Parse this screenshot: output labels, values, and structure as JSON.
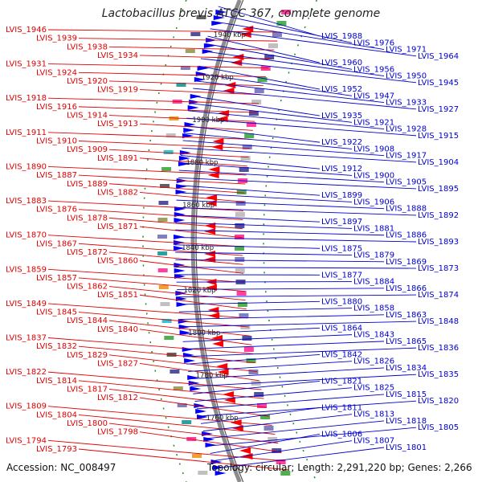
{
  "title": "Lactobacillus brevis ATCC 367, complete genome",
  "accession_text": "Accession: NC_008497",
  "topology_text": "Topology: circular; Length: 2,291,220 bp; Genes: 2,266",
  "coordinates": [
    "1940 kbp",
    "1920 kbp",
    "1900 kbp",
    "1880 kbp",
    "1860 kbp",
    "1840 kbp",
    "1820 kbp",
    "1800 kbp",
    "1780 kbp",
    "1760 kbp"
  ],
  "left_labels": [
    "LVIS_1946",
    "LVIS_1939",
    "LVIS_1938",
    "LVIS_1934",
    "LVIS_1931",
    "LVIS_1924",
    "LVIS_1920",
    "LVIS_1919",
    "LVIS_1918",
    "LVIS_1916",
    "LVIS_1914",
    "LVIS_1913",
    "LVIS_1911",
    "LVIS_1910",
    "LVIS_1909",
    "LVIS_1891",
    "LVIS_1890",
    "LVIS_1887",
    "LVIS_1889",
    "LVIS_1882",
    "LVIS_1883",
    "LVIS_1876",
    "LVIS_1878",
    "LVIS_1871",
    "LVIS_1870",
    "LVIS_1867",
    "LVIS_1872",
    "LVIS_1860",
    "LVIS_1859",
    "LVIS_1857",
    "LVIS_1862",
    "LVIS_1851",
    "LVIS_1849",
    "LVIS_1845",
    "LVIS_1844",
    "LVIS_1840",
    "LVIS_1837",
    "LVIS_1832",
    "LVIS_1829",
    "LVIS_1827",
    "LVIS_1822",
    "LVIS_1814",
    "LVIS_1817",
    "LVIS_1812",
    "LVIS_1809",
    "LVIS_1804",
    "LVIS_1800",
    "LVIS_1798",
    "LVIS_1794",
    "LVIS_1793"
  ],
  "right_labels": [
    "LVIS_1988",
    "LVIS_1976",
    "LVIS_1971",
    "LVIS_1964",
    "LVIS_1960",
    "LVIS_1956",
    "LVIS_1950",
    "LVIS_1945",
    "LVIS_1952",
    "LVIS_1947",
    "LVIS_1933",
    "LVIS_1927",
    "LVIS_1935",
    "LVIS_1921",
    "LVIS_1928",
    "LVIS_1915",
    "LVIS_1922",
    "LVIS_1908",
    "LVIS_1917",
    "LVIS_1904",
    "LVIS_1912",
    "LVIS_1900",
    "LVIS_1905",
    "LVIS_1895",
    "LVIS_1899",
    "LVIS_1906",
    "LVIS_1888",
    "LVIS_1892",
    "LVIS_1897",
    "LVIS_1881",
    "LVIS_1886",
    "LVIS_1893",
    "LVIS_1875",
    "LVIS_1879",
    "LVIS_1869",
    "LVIS_1873",
    "LVIS_1877",
    "LVIS_1884",
    "LVIS_1866",
    "LVIS_1874",
    "LVIS_1880",
    "LVIS_1858",
    "LVIS_1863",
    "LVIS_1848",
    "LVIS_1864",
    "LVIS_1843",
    "LVIS_1865",
    "LVIS_1836",
    "LVIS_1842",
    "LVIS_1826",
    "LVIS_1834",
    "LVIS_1835",
    "LVIS_1821",
    "LVIS_1825",
    "LVIS_1815",
    "LVIS_1820",
    "LVIS_1811",
    "LVIS_1813",
    "LVIS_1818",
    "LVIS_1805",
    "LVIS_1806",
    "LVIS_1807",
    "LVIS_1801"
  ],
  "colors": {
    "forward_gene": "#ff0000",
    "reverse_gene": "#0000ff",
    "backbone": "#8c8c8c",
    "tick_green": "#1a8c1a",
    "left_label": "#e00000",
    "right_label": "#0000cc"
  }
}
